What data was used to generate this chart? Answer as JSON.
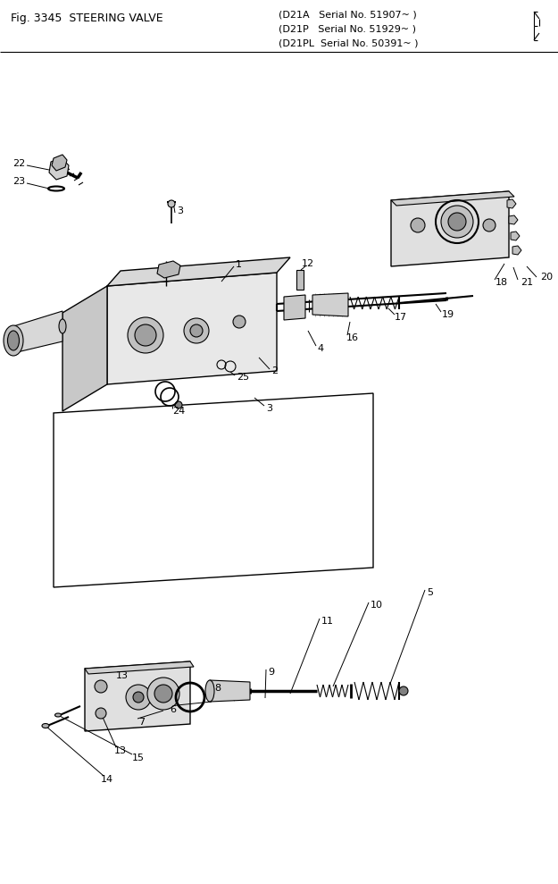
{
  "bg_color": "#ffffff",
  "fig_width": 6.25,
  "fig_height": 9.89,
  "dpi": 100,
  "title": "Fig. 3345  STEERING VALVE",
  "serial_lines": [
    "(D21A   Serial No. 51907~ )",
    "(D21P   Serial No. 51929~ )",
    "(D21PL  Serial No. 50391~ )"
  ]
}
